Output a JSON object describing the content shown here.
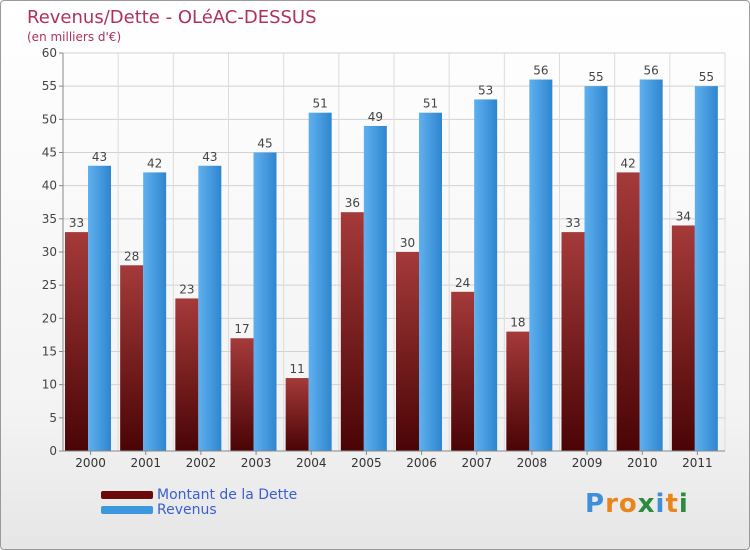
{
  "header": {
    "title": "Revenus/Dette - OLéAC-DESSUS",
    "subtitle": "(en milliers d'€)"
  },
  "chart_data": {
    "type": "bar",
    "title": "Revenus/Dette - OLéAC-DESSUS",
    "subtitle": "(en milliers d'€)",
    "categories": [
      "2000",
      "2001",
      "2002",
      "2003",
      "2004",
      "2005",
      "2006",
      "2007",
      "2008",
      "2009",
      "2010",
      "2011"
    ],
    "series": [
      {
        "name": "Montant de la Dette",
        "color": "#7a0f12",
        "values": [
          33,
          28,
          23,
          17,
          11,
          36,
          30,
          24,
          18,
          33,
          42,
          34
        ]
      },
      {
        "name": "Revenus",
        "color": "#3d97dd",
        "values": [
          43,
          42,
          43,
          45,
          51,
          49,
          51,
          53,
          56,
          55,
          56,
          55
        ]
      }
    ],
    "ylim": [
      0,
      60
    ],
    "yticks": [
      0,
      5,
      10,
      15,
      20,
      25,
      30,
      35,
      40,
      45,
      50,
      55,
      60
    ],
    "grid": true,
    "legend": "bottom-left",
    "xlabel": "",
    "ylabel": ""
  },
  "legend": {
    "items": [
      {
        "label": "Montant de la Dette",
        "color": "#6b0a0c"
      },
      {
        "label": "Revenus",
        "color": "#3d97dd"
      }
    ]
  },
  "logo": {
    "letters": [
      "P",
      "r",
      "o",
      "x",
      "i",
      "t",
      "i"
    ],
    "colors": [
      "#3d8fdc",
      "#e8861c",
      "#e8861c",
      "#2d8a3e",
      "#3d8fdc",
      "#e8861c",
      "#2d8a3e"
    ]
  }
}
